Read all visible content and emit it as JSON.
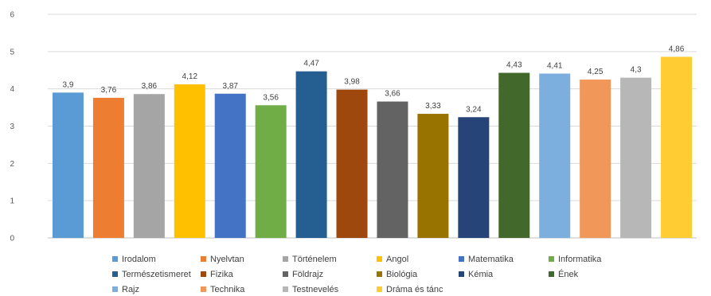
{
  "chart_data": {
    "type": "bar",
    "title": "",
    "xlabel": "",
    "ylabel": "",
    "ylim": [
      0,
      6
    ],
    "yticks": [
      "0",
      "1",
      "2",
      "3",
      "4",
      "5",
      "6"
    ],
    "grid": true,
    "legend_position": "bottom",
    "categories": [
      "Irodalom",
      "Nyelvtan",
      "Történelem",
      "Angol",
      "Matematika",
      "Informatika",
      "Természetismeret",
      "Fizika",
      "Földrajz",
      "Biológia",
      "Kémia",
      "Ének",
      "Rajz",
      "Technika",
      "Testnevelés",
      "Dráma és tánc"
    ],
    "values": [
      3.9,
      3.76,
      3.86,
      4.12,
      3.87,
      3.56,
      4.47,
      3.98,
      3.66,
      3.33,
      3.24,
      4.43,
      4.41,
      4.25,
      4.3,
      4.86
    ],
    "value_labels": [
      "3,9",
      "3,76",
      "3,86",
      "4,12",
      "3,87",
      "3,56",
      "4,47",
      "3,98",
      "3,66",
      "3,33",
      "3,24",
      "4,43",
      "4,41",
      "4,25",
      "4,3",
      "4,86"
    ],
    "colors": [
      "#5B9BD5",
      "#ED7D31",
      "#A5A5A5",
      "#FFC000",
      "#4472C4",
      "#70AD47",
      "#255E91",
      "#9E480E",
      "#636363",
      "#997300",
      "#264478",
      "#43682B",
      "#7CAFDD",
      "#F1975A",
      "#B7B7B7",
      "#FFCD33"
    ]
  }
}
